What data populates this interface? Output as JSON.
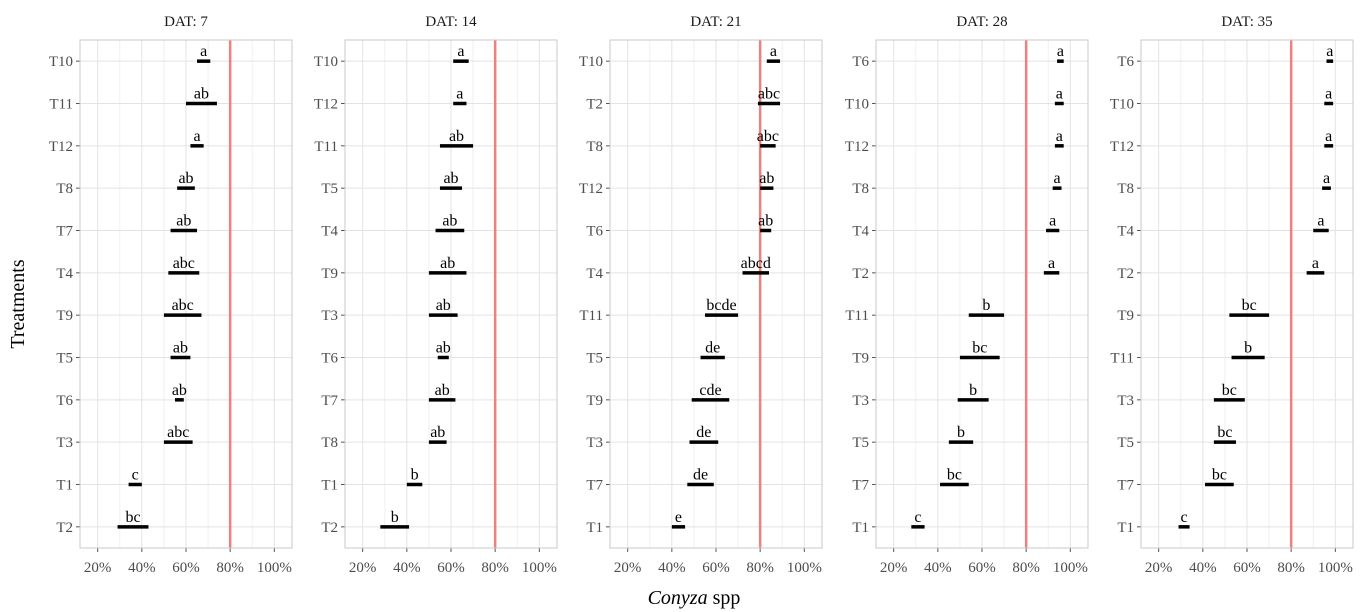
{
  "chart_data": {
    "type": "interval",
    "ylabel": "Treatments",
    "xlabel_italic": "Conyza",
    "xlabel_rest": " spp",
    "xlim": [
      0.12,
      1.08
    ],
    "xticks": [
      0.2,
      0.4,
      0.6,
      0.8,
      1.0
    ],
    "xtick_labels": [
      "20%",
      "40%",
      "60%",
      "80%",
      "100%"
    ],
    "reference_line": 0.8,
    "reference_color": "#f08080",
    "grid": true,
    "panels": [
      {
        "title": "DAT: 7",
        "rows": [
          {
            "treatment": "T10",
            "low": 0.65,
            "high": 0.71,
            "label": "a"
          },
          {
            "treatment": "T11",
            "low": 0.6,
            "high": 0.74,
            "label": "ab"
          },
          {
            "treatment": "T12",
            "low": 0.62,
            "high": 0.68,
            "label": "a"
          },
          {
            "treatment": "T8",
            "low": 0.56,
            "high": 0.64,
            "label": "ab"
          },
          {
            "treatment": "T7",
            "low": 0.53,
            "high": 0.65,
            "label": "ab"
          },
          {
            "treatment": "T4",
            "low": 0.52,
            "high": 0.66,
            "label": "abc"
          },
          {
            "treatment": "T9",
            "low": 0.5,
            "high": 0.67,
            "label": "abc"
          },
          {
            "treatment": "T5",
            "low": 0.53,
            "high": 0.62,
            "label": "ab"
          },
          {
            "treatment": "T6",
            "low": 0.55,
            "high": 0.59,
            "label": "ab"
          },
          {
            "treatment": "T3",
            "low": 0.5,
            "high": 0.63,
            "label": "abc"
          },
          {
            "treatment": "T1",
            "low": 0.34,
            "high": 0.4,
            "label": "c"
          },
          {
            "treatment": "T2",
            "low": 0.29,
            "high": 0.43,
            "label": "bc"
          }
        ]
      },
      {
        "title": "DAT: 14",
        "rows": [
          {
            "treatment": "T10",
            "low": 0.61,
            "high": 0.68,
            "label": "a"
          },
          {
            "treatment": "T12",
            "low": 0.61,
            "high": 0.67,
            "label": "a"
          },
          {
            "treatment": "T11",
            "low": 0.55,
            "high": 0.7,
            "label": "ab"
          },
          {
            "treatment": "T5",
            "low": 0.55,
            "high": 0.65,
            "label": "ab"
          },
          {
            "treatment": "T4",
            "low": 0.53,
            "high": 0.66,
            "label": "ab"
          },
          {
            "treatment": "T9",
            "low": 0.5,
            "high": 0.67,
            "label": "ab"
          },
          {
            "treatment": "T3",
            "low": 0.5,
            "high": 0.63,
            "label": "ab"
          },
          {
            "treatment": "T6",
            "low": 0.54,
            "high": 0.59,
            "label": "ab"
          },
          {
            "treatment": "T7",
            "low": 0.5,
            "high": 0.62,
            "label": "ab"
          },
          {
            "treatment": "T8",
            "low": 0.5,
            "high": 0.58,
            "label": "ab"
          },
          {
            "treatment": "T1",
            "low": 0.4,
            "high": 0.47,
            "label": "b"
          },
          {
            "treatment": "T2",
            "low": 0.28,
            "high": 0.41,
            "label": "b"
          }
        ]
      },
      {
        "title": "DAT: 21",
        "rows": [
          {
            "treatment": "T10",
            "low": 0.83,
            "high": 0.89,
            "label": "a"
          },
          {
            "treatment": "T2",
            "low": 0.79,
            "high": 0.89,
            "label": "abc"
          },
          {
            "treatment": "T8",
            "low": 0.8,
            "high": 0.87,
            "label": "abc"
          },
          {
            "treatment": "T12",
            "low": 0.8,
            "high": 0.86,
            "label": "ab"
          },
          {
            "treatment": "T6",
            "low": 0.8,
            "high": 0.85,
            "label": "ab"
          },
          {
            "treatment": "T4",
            "low": 0.72,
            "high": 0.84,
            "label": "abcd"
          },
          {
            "treatment": "T11",
            "low": 0.55,
            "high": 0.7,
            "label": "bcde"
          },
          {
            "treatment": "T5",
            "low": 0.53,
            "high": 0.64,
            "label": "de"
          },
          {
            "treatment": "T9",
            "low": 0.49,
            "high": 0.66,
            "label": "cde"
          },
          {
            "treatment": "T3",
            "low": 0.48,
            "high": 0.61,
            "label": "de"
          },
          {
            "treatment": "T7",
            "low": 0.47,
            "high": 0.59,
            "label": "de"
          },
          {
            "treatment": "T1",
            "low": 0.4,
            "high": 0.46,
            "label": "e"
          }
        ]
      },
      {
        "title": "DAT: 28",
        "rows": [
          {
            "treatment": "T6",
            "low": 0.94,
            "high": 0.97,
            "label": "a"
          },
          {
            "treatment": "T10",
            "low": 0.93,
            "high": 0.97,
            "label": "a"
          },
          {
            "treatment": "T12",
            "low": 0.93,
            "high": 0.97,
            "label": "a"
          },
          {
            "treatment": "T8",
            "low": 0.92,
            "high": 0.96,
            "label": "a"
          },
          {
            "treatment": "T4",
            "low": 0.89,
            "high": 0.95,
            "label": "a"
          },
          {
            "treatment": "T2",
            "low": 0.88,
            "high": 0.95,
            "label": "a"
          },
          {
            "treatment": "T11",
            "low": 0.54,
            "high": 0.7,
            "label": "b"
          },
          {
            "treatment": "T9",
            "low": 0.5,
            "high": 0.68,
            "label": "bc"
          },
          {
            "treatment": "T3",
            "low": 0.49,
            "high": 0.63,
            "label": "b"
          },
          {
            "treatment": "T5",
            "low": 0.45,
            "high": 0.56,
            "label": "b"
          },
          {
            "treatment": "T7",
            "low": 0.41,
            "high": 0.54,
            "label": "bc"
          },
          {
            "treatment": "T1",
            "low": 0.28,
            "high": 0.34,
            "label": "c"
          }
        ]
      },
      {
        "title": "DAT: 35",
        "rows": [
          {
            "treatment": "T6",
            "low": 0.96,
            "high": 0.99,
            "label": "a"
          },
          {
            "treatment": "T10",
            "low": 0.95,
            "high": 0.99,
            "label": "a"
          },
          {
            "treatment": "T12",
            "low": 0.95,
            "high": 0.99,
            "label": "a"
          },
          {
            "treatment": "T8",
            "low": 0.94,
            "high": 0.98,
            "label": "a"
          },
          {
            "treatment": "T4",
            "low": 0.9,
            "high": 0.97,
            "label": "a"
          },
          {
            "treatment": "T2",
            "low": 0.87,
            "high": 0.95,
            "label": "a"
          },
          {
            "treatment": "T9",
            "low": 0.52,
            "high": 0.7,
            "label": "bc"
          },
          {
            "treatment": "T11",
            "low": 0.53,
            "high": 0.68,
            "label": "b"
          },
          {
            "treatment": "T3",
            "low": 0.45,
            "high": 0.59,
            "label": "bc"
          },
          {
            "treatment": "T5",
            "low": 0.45,
            "high": 0.55,
            "label": "bc"
          },
          {
            "treatment": "T7",
            "low": 0.41,
            "high": 0.54,
            "label": "bc"
          },
          {
            "treatment": "T1",
            "low": 0.29,
            "high": 0.34,
            "label": "c"
          }
        ]
      }
    ]
  }
}
